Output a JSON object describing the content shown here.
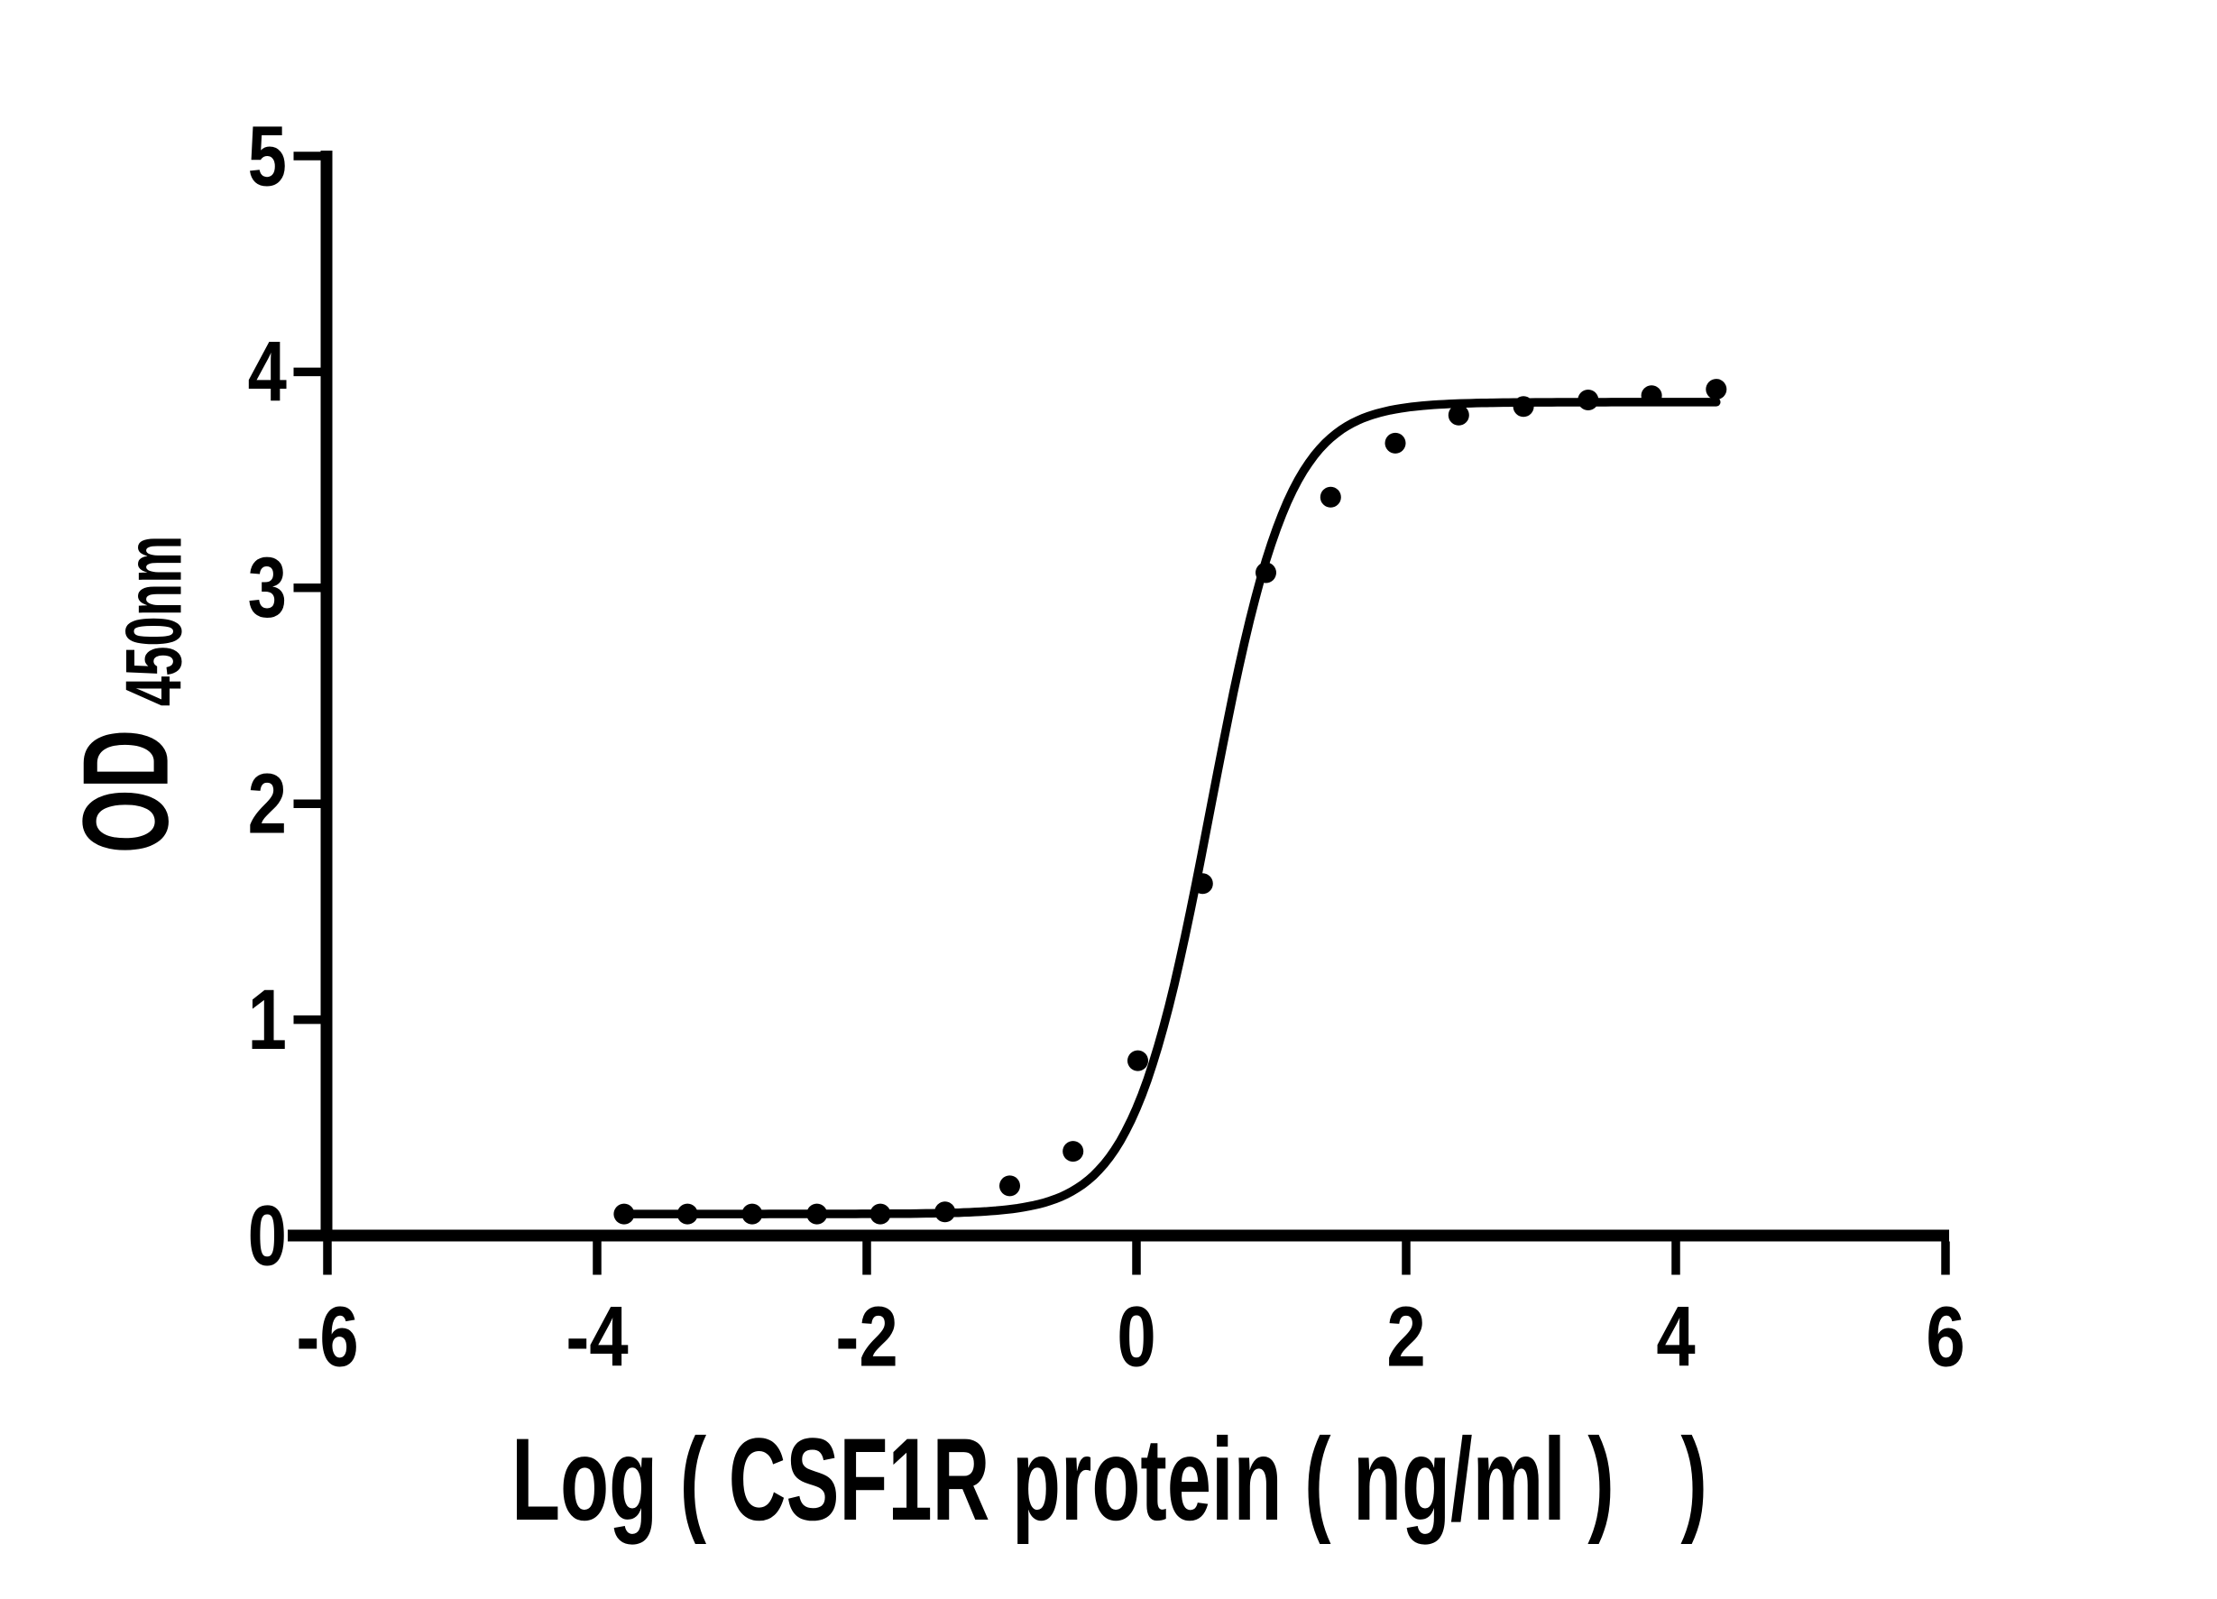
{
  "figure": {
    "background": "#ffffff",
    "ink_color": "#000000",
    "description": "ELISA sigmoidal binding curve, black on white, no title, no legend"
  },
  "chart_data": {
    "type": "scatter",
    "title": "",
    "xlabel": "Log ( CSF1R protein ( ng/ml )   )",
    "ylabel": "OD450nm",
    "ylabel_main": "OD",
    "ylabel_sub": "450nm",
    "x_ticks": [
      -6,
      -4,
      -2,
      0,
      2,
      4,
      6
    ],
    "y_ticks": [
      0,
      1,
      2,
      3,
      4,
      5
    ],
    "xlim": [
      -6.3,
      6.03
    ],
    "ylim": [
      0,
      5
    ],
    "grid": false,
    "legend": "none",
    "marker": {
      "shape": "filled-circle",
      "color": "#000000"
    },
    "points": {
      "x": [
        -3.8,
        -3.33,
        -2.85,
        -2.37,
        -1.9,
        -1.42,
        -0.94,
        -0.47,
        0.01,
        0.49,
        0.96,
        1.44,
        1.92,
        2.39,
        2.87,
        3.35,
        3.82,
        4.3
      ],
      "od": [
        0.1,
        0.1,
        0.1,
        0.1,
        0.1,
        0.11,
        0.23,
        0.39,
        0.81,
        1.63,
        3.07,
        3.42,
        3.67,
        3.8,
        3.84,
        3.87,
        3.89,
        3.92
      ]
    },
    "fit_curve": {
      "model": "4PL-logistic",
      "bottom": 0.1,
      "top": 3.86,
      "logEC50": 0.55,
      "hillslope": 1.5,
      "x_start": -3.8,
      "x_end": 4.3
    }
  }
}
